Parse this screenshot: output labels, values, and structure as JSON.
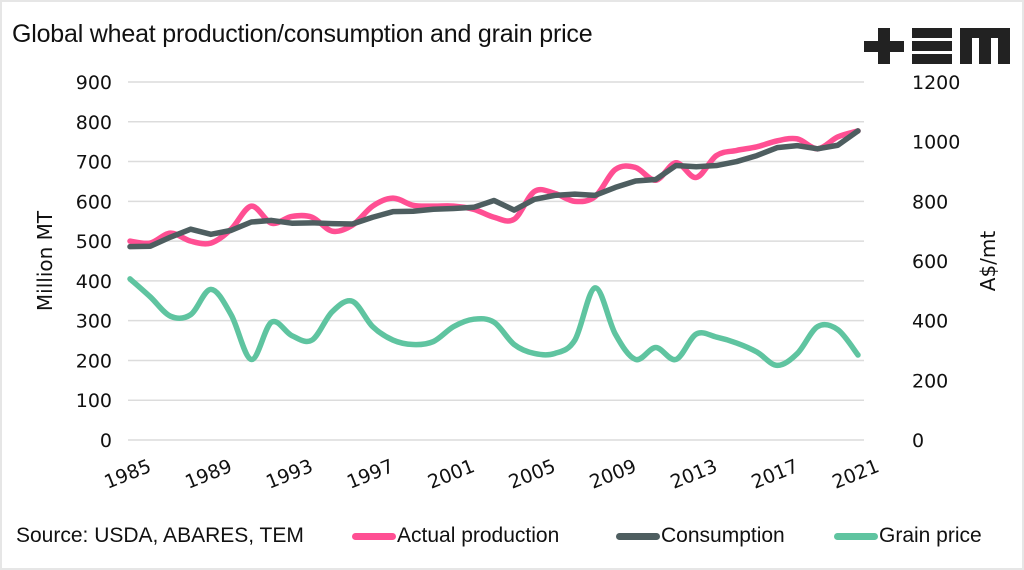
{
  "title": "Global wheat production/consumption and grain price",
  "logo": {
    "name": "TEM",
    "glyph": "+EM"
  },
  "source": "Source: USDA, ABARES, TEM",
  "legend": [
    {
      "label": "Actual production",
      "color": "#ff4f93"
    },
    {
      "label": "Consumption",
      "color": "#4e5e60"
    },
    {
      "label": "Grain price",
      "color": "#5fc4a0"
    }
  ],
  "chart_data": {
    "type": "line",
    "title": "Global wheat production/consumption and grain price",
    "x": [
      1985,
      1986,
      1987,
      1988,
      1989,
      1990,
      1991,
      1992,
      1993,
      1994,
      1995,
      1996,
      1997,
      1998,
      1999,
      2000,
      2001,
      2002,
      2003,
      2004,
      2005,
      2006,
      2007,
      2008,
      2009,
      2010,
      2011,
      2012,
      2013,
      2014,
      2015,
      2016,
      2017,
      2018,
      2019,
      2020,
      2021
    ],
    "x_tick_labels": [
      "1985",
      "1989",
      "1993",
      "1997",
      "2001",
      "2005",
      "2009",
      "2013",
      "2017",
      "2021"
    ],
    "y_left": {
      "label": "Million MT",
      "range": [
        0,
        900
      ],
      "ticks": [
        "0",
        "100",
        "200",
        "300",
        "400",
        "500",
        "600",
        "700",
        "800",
        "900"
      ]
    },
    "y_right": {
      "label": "A$/mt",
      "range": [
        0,
        1200
      ],
      "ticks": [
        "0",
        "200",
        "400",
        "600",
        "800",
        "1000",
        "1200"
      ]
    },
    "grid": true,
    "legend_position": "bottom",
    "series": [
      {
        "name": "Actual production",
        "axis": "left",
        "color": "#ff4f93",
        "smooth": true,
        "values": [
          500,
          495,
          520,
          500,
          495,
          530,
          588,
          545,
          562,
          560,
          525,
          540,
          588,
          608,
          590,
          588,
          588,
          580,
          560,
          555,
          625,
          620,
          600,
          612,
          680,
          685,
          653,
          697,
          660,
          715,
          728,
          737,
          752,
          757,
          732,
          762,
          777
        ]
      },
      {
        "name": "Consumption",
        "axis": "left",
        "color": "#4e5e60",
        "smooth": false,
        "values": [
          486,
          487,
          510,
          530,
          517,
          527,
          548,
          552,
          545,
          546,
          544,
          543,
          560,
          574,
          575,
          580,
          582,
          585,
          602,
          578,
          605,
          615,
          618,
          615,
          635,
          651,
          655,
          690,
          687,
          690,
          700,
          715,
          735,
          740,
          732,
          741,
          777
        ]
      },
      {
        "name": "Grain price",
        "axis": "right",
        "color": "#5fc4a0",
        "smooth": true,
        "values": [
          540,
          480,
          415,
          420,
          505,
          420,
          270,
          395,
          350,
          335,
          430,
          465,
          380,
          335,
          320,
          330,
          380,
          405,
          395,
          320,
          290,
          290,
          335,
          510,
          355,
          270,
          310,
          270,
          355,
          345,
          325,
          295,
          250,
          290,
          380,
          370,
          285
        ]
      }
    ]
  }
}
